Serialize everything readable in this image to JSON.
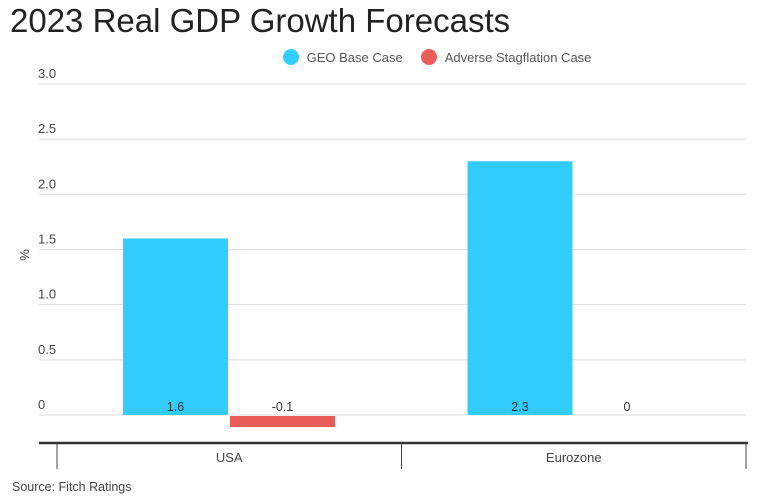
{
  "chart_data": {
    "type": "bar",
    "title": "2023 Real GDP Growth Forecasts",
    "xlabel": "",
    "ylabel": "%",
    "ylim": [
      0,
      3.0
    ],
    "yticks": [
      "0",
      "0.5",
      "1.0",
      "1.5",
      "2.0",
      "2.5",
      "3.0"
    ],
    "categories": [
      "USA",
      "Eurozone"
    ],
    "series": [
      {
        "name": "GEO Base Case",
        "color": "#33ccff",
        "values": [
          1.6,
          2.3
        ],
        "labels": [
          "1.6",
          "2.3"
        ]
      },
      {
        "name": "Adverse Stagflation Case",
        "color": "#e85c5a",
        "values": [
          -0.1,
          0
        ],
        "labels": [
          "-0.1",
          "0"
        ]
      }
    ],
    "grid": true,
    "legend_position": "top-center",
    "source": "Source: Fitch Ratings"
  }
}
